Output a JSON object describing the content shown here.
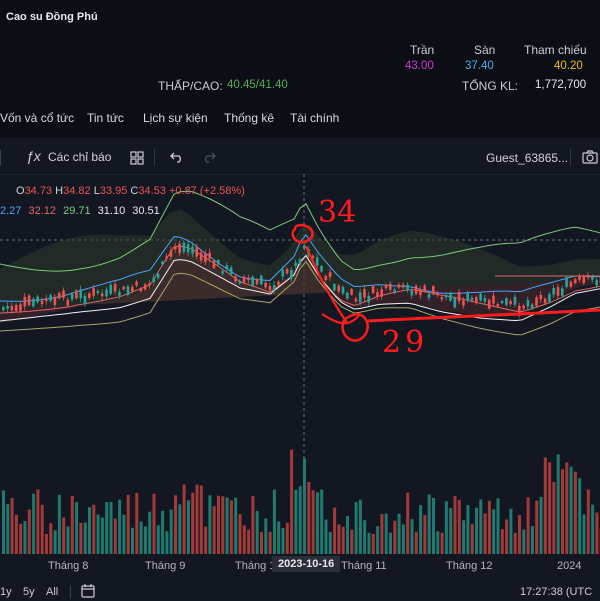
{
  "header": {
    "title": "Cao su Đồng Phú",
    "ceiling_label": "Trần",
    "floor_label": "Sàn",
    "reference_label": "Tham chiếu",
    "ceiling_value": "43.00",
    "floor_value": "37.40",
    "reference_value": "40.20",
    "low_high_label": "THẤP/CAO:",
    "low_high_value": "40.45/41.40",
    "total_volume_label": "TỔNG KL:",
    "total_volume_value": "1,772,700"
  },
  "tabs": [
    "Vốn và cổ tức",
    "Tin tức",
    "Lịch sự kiện",
    "Thống kê",
    "Tài chính"
  ],
  "toolbar": {
    "indicators_label": "Các chỉ báo",
    "account_label": "Guest_63865..."
  },
  "ohlc": {
    "o_label": "O",
    "o_value": "34.73",
    "h_label": "H",
    "h_value": "34.82",
    "l_label": "L",
    "l_value": "33.95",
    "c_label": "C",
    "c_value": "34.53",
    "change": "+0.87 (+2.58%)"
  },
  "indicator_values": [
    "2.27",
    "32.12",
    "29.71",
    "31.10",
    "30.51"
  ],
  "annotations": {
    "peak_text": "34",
    "trough_text": "29"
  },
  "x_axis": {
    "ticks": [
      "Tháng 8",
      "Tháng 9",
      "Tháng 1",
      "2023-10-16",
      "Tháng 11",
      "Tháng 12",
      "2024"
    ]
  },
  "footer": {
    "ranges": [
      "1y",
      "5y",
      "All"
    ],
    "time": "17:27:38 (UTC"
  },
  "colors": {
    "up": "#26a69a",
    "down": "#ef5350",
    "ceiling": "#d633d6",
    "floor": "#3fb5e8",
    "reference": "#e6c300",
    "annotation": "#ff1c1c"
  },
  "icons": [
    "fx-icon",
    "grid-icon",
    "undo-icon",
    "redo-icon",
    "calendar-icon"
  ]
}
